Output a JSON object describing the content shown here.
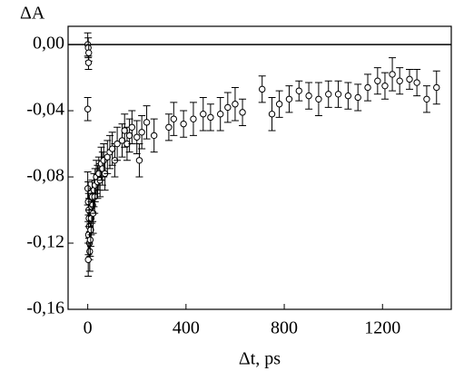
{
  "chart_data": {
    "type": "scatter",
    "xlabel": "Δt, ps",
    "ylabel": "ΔA",
    "color": "#000000",
    "hline": 0,
    "xlim": [
      -80,
      1480
    ],
    "ylim": [
      -0.16,
      0.011
    ],
    "xticks": [
      0,
      400,
      800,
      1200
    ],
    "yticks": [
      {
        "value": 0,
        "label": "0,00"
      },
      {
        "value": -0.04,
        "label": "-0,04"
      },
      {
        "value": -0.08,
        "label": "-0,08"
      },
      {
        "value": -0.12,
        "label": "-0,12"
      },
      {
        "value": -0.16,
        "label": "-0,16"
      }
    ],
    "x": [
      0,
      2,
      4,
      3,
      0,
      0,
      2,
      4,
      5,
      6,
      3,
      7,
      8,
      2,
      10,
      12,
      14,
      16,
      18,
      20,
      22,
      25,
      28,
      30,
      35,
      40,
      45,
      50,
      55,
      60,
      65,
      70,
      80,
      90,
      100,
      110,
      120,
      140,
      150,
      160,
      170,
      180,
      200,
      210,
      220,
      240,
      270,
      330,
      350,
      390,
      430,
      470,
      500,
      540,
      570,
      600,
      630,
      710,
      750,
      780,
      820,
      860,
      900,
      940,
      980,
      1020,
      1060,
      1100,
      1140,
      1180,
      1210,
      1240,
      1270,
      1310,
      1340,
      1380,
      1420
    ],
    "values": [
      0.0,
      -0.002,
      -0.005,
      -0.011,
      -0.039,
      -0.087,
      -0.095,
      -0.1,
      -0.105,
      -0.11,
      -0.115,
      -0.12,
      -0.125,
      -0.13,
      -0.118,
      -0.112,
      -0.105,
      -0.098,
      -0.092,
      -0.097,
      -0.102,
      -0.088,
      -0.092,
      -0.085,
      -0.08,
      -0.083,
      -0.078,
      -0.082,
      -0.072,
      -0.075,
      -0.07,
      -0.078,
      -0.068,
      -0.065,
      -0.063,
      -0.07,
      -0.06,
      -0.058,
      -0.052,
      -0.06,
      -0.055,
      -0.05,
      -0.056,
      -0.07,
      -0.053,
      -0.047,
      -0.055,
      -0.05,
      -0.045,
      -0.048,
      -0.045,
      -0.042,
      -0.044,
      -0.042,
      -0.038,
      -0.036,
      -0.041,
      -0.027,
      -0.042,
      -0.036,
      -0.033,
      -0.028,
      -0.031,
      -0.033,
      -0.03,
      -0.03,
      -0.031,
      -0.032,
      -0.026,
      -0.022,
      -0.025,
      -0.018,
      -0.022,
      -0.021,
      -0.023,
      -0.033,
      -0.026
    ],
    "errors": [
      0.007,
      0.006,
      0.005,
      0.004,
      0.007,
      0.01,
      0.012,
      0.01,
      0.012,
      0.01,
      0.012,
      0.01,
      0.012,
      0.01,
      0.01,
      0.01,
      0.01,
      0.01,
      0.01,
      0.01,
      0.012,
      0.01,
      0.01,
      0.01,
      0.01,
      0.01,
      0.01,
      0.01,
      0.01,
      0.01,
      0.01,
      0.01,
      0.01,
      0.01,
      0.01,
      0.01,
      0.01,
      0.01,
      0.01,
      0.01,
      0.01,
      0.01,
      0.01,
      0.01,
      0.01,
      0.01,
      0.01,
      0.008,
      0.01,
      0.008,
      0.01,
      0.01,
      0.008,
      0.01,
      0.009,
      0.01,
      0.008,
      0.008,
      0.01,
      0.008,
      0.008,
      0.006,
      0.008,
      0.01,
      0.008,
      0.008,
      0.008,
      0.008,
      0.008,
      0.008,
      0.008,
      0.01,
      0.008,
      0.006,
      0.008,
      0.008,
      0.01
    ]
  }
}
